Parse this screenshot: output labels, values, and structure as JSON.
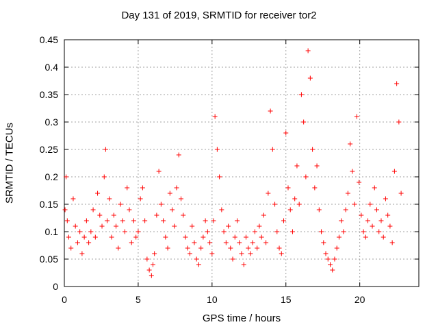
{
  "chart_data": {
    "type": "scatter",
    "title": "Day 131 of 2019, SRMTID for receiver tor2",
    "xlabel": "GPS time / hours",
    "ylabel": "SRMTID / TECUs",
    "xlim": [
      0,
      24
    ],
    "ylim": [
      0,
      0.45
    ],
    "xticks": [
      0,
      5,
      10,
      15,
      20
    ],
    "xtick_labels": [
      "0",
      "5",
      "10",
      "15",
      "20"
    ],
    "yticks": [
      0,
      0.05,
      0.1,
      0.15,
      0.2,
      0.25,
      0.3,
      0.35,
      0.4,
      0.45
    ],
    "ytick_labels": [
      "0",
      "0.05",
      "0.1",
      "0.15",
      "0.2",
      "0.25",
      "0.3",
      "0.35",
      "0.4",
      "0.45"
    ],
    "grid": true,
    "marker": "+",
    "color": "#ff0000",
    "series": [
      {
        "name": "SRMTID",
        "x": [
          0.05,
          0.12,
          0.2,
          0.3,
          0.45,
          0.6,
          0.75,
          0.9,
          1.05,
          1.2,
          1.35,
          1.5,
          1.65,
          1.8,
          1.95,
          2.1,
          2.25,
          2.4,
          2.55,
          2.7,
          2.8,
          2.9,
          3.05,
          3.2,
          3.35,
          3.5,
          3.65,
          3.8,
          3.95,
          4.1,
          4.25,
          4.4,
          4.55,
          4.7,
          4.85,
          5.0,
          5.15,
          5.3,
          5.45,
          5.6,
          5.75,
          5.9,
          6.0,
          6.1,
          6.25,
          6.4,
          6.55,
          6.7,
          6.85,
          7.0,
          7.15,
          7.3,
          7.45,
          7.6,
          7.75,
          7.9,
          8.05,
          8.2,
          8.35,
          8.5,
          8.65,
          8.8,
          8.95,
          9.1,
          9.25,
          9.4,
          9.55,
          9.7,
          9.85,
          10.0,
          10.1,
          10.2,
          10.35,
          10.5,
          10.65,
          10.8,
          10.95,
          11.1,
          11.25,
          11.4,
          11.55,
          11.7,
          11.85,
          12.0,
          12.15,
          12.3,
          12.45,
          12.6,
          12.75,
          12.9,
          13.05,
          13.2,
          13.35,
          13.5,
          13.65,
          13.8,
          13.95,
          14.1,
          14.25,
          14.4,
          14.55,
          14.7,
          14.85,
          15.0,
          15.15,
          15.3,
          15.45,
          15.6,
          15.75,
          15.9,
          16.05,
          16.2,
          16.35,
          16.5,
          16.65,
          16.8,
          16.95,
          17.1,
          17.25,
          17.4,
          17.55,
          17.7,
          17.85,
          18.0,
          18.15,
          18.3,
          18.45,
          18.6,
          18.75,
          18.9,
          19.05,
          19.2,
          19.35,
          19.5,
          19.65,
          19.8,
          19.95,
          20.1,
          20.25,
          20.4,
          20.55,
          20.7,
          20.85,
          21.0,
          21.15,
          21.3,
          21.45,
          21.6,
          21.75,
          21.9,
          22.05,
          22.2,
          22.35,
          22.5,
          22.65,
          22.8
        ],
        "y": [
          0.14,
          0.2,
          0.12,
          0.09,
          0.07,
          0.16,
          0.11,
          0.08,
          0.1,
          0.06,
          0.09,
          0.12,
          0.08,
          0.1,
          0.14,
          0.09,
          0.17,
          0.13,
          0.11,
          0.2,
          0.25,
          0.12,
          0.16,
          0.09,
          0.13,
          0.11,
          0.07,
          0.15,
          0.12,
          0.1,
          0.18,
          0.14,
          0.08,
          0.12,
          0.09,
          0.1,
          0.16,
          0.18,
          0.12,
          0.05,
          0.03,
          0.02,
          0.04,
          0.06,
          0.13,
          0.21,
          0.15,
          0.12,
          0.09,
          0.07,
          0.17,
          0.14,
          0.11,
          0.18,
          0.24,
          0.16,
          0.13,
          0.09,
          0.07,
          0.06,
          0.11,
          0.08,
          0.05,
          0.04,
          0.07,
          0.09,
          0.12,
          0.1,
          0.08,
          0.06,
          0.12,
          0.31,
          0.25,
          0.2,
          0.14,
          0.1,
          0.08,
          0.11,
          0.07,
          0.05,
          0.09,
          0.12,
          0.08,
          0.06,
          0.04,
          0.09,
          0.07,
          0.06,
          0.08,
          0.1,
          0.07,
          0.11,
          0.09,
          0.13,
          0.08,
          0.17,
          0.32,
          0.25,
          0.15,
          0.1,
          0.07,
          0.06,
          0.12,
          0.28,
          0.18,
          0.14,
          0.1,
          0.16,
          0.22,
          0.15,
          0.35,
          0.3,
          0.2,
          0.43,
          0.38,
          0.25,
          0.18,
          0.22,
          0.14,
          0.1,
          0.08,
          0.06,
          0.05,
          0.04,
          0.03,
          0.05,
          0.07,
          0.09,
          0.12,
          0.1,
          0.14,
          0.17,
          0.26,
          0.21,
          0.15,
          0.31,
          0.19,
          0.13,
          0.1,
          0.09,
          0.12,
          0.15,
          0.11,
          0.18,
          0.14,
          0.1,
          0.12,
          0.09,
          0.16,
          0.13,
          0.11,
          0.08,
          0.21,
          0.37,
          0.3,
          0.17
        ]
      }
    ]
  }
}
